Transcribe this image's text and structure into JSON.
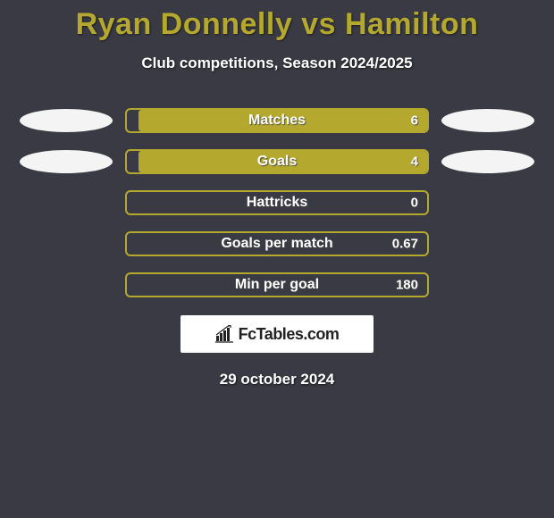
{
  "title": "Ryan Donnelly vs Hamilton",
  "subtitle": "Club competitions, Season 2024/2025",
  "accent_color": "#b5a82e",
  "background_color": "#3a3a44",
  "text_color": "#ffffff",
  "bar_border_color": "#b5a82e",
  "oval_left_color": "#f4f4f4",
  "oval_right_color": "#f4f4f4",
  "title_fontsize": 34,
  "subtitle_fontsize": 17,
  "label_fontsize": 16,
  "value_fontsize": 15,
  "rows": [
    {
      "label": "Matches",
      "value": "6",
      "fill_pct": 96,
      "show_left_oval": true,
      "show_right_oval": true
    },
    {
      "label": "Goals",
      "value": "4",
      "fill_pct": 96,
      "show_left_oval": true,
      "show_right_oval": true
    },
    {
      "label": "Hattricks",
      "value": "0",
      "fill_pct": 0,
      "show_left_oval": false,
      "show_right_oval": false
    },
    {
      "label": "Goals per match",
      "value": "0.67",
      "fill_pct": 0,
      "show_left_oval": false,
      "show_right_oval": false
    },
    {
      "label": "Min per goal",
      "value": "180",
      "fill_pct": 0,
      "show_left_oval": false,
      "show_right_oval": false
    }
  ],
  "badge": {
    "text": "FcTables.com"
  },
  "date": "29 october 2024"
}
